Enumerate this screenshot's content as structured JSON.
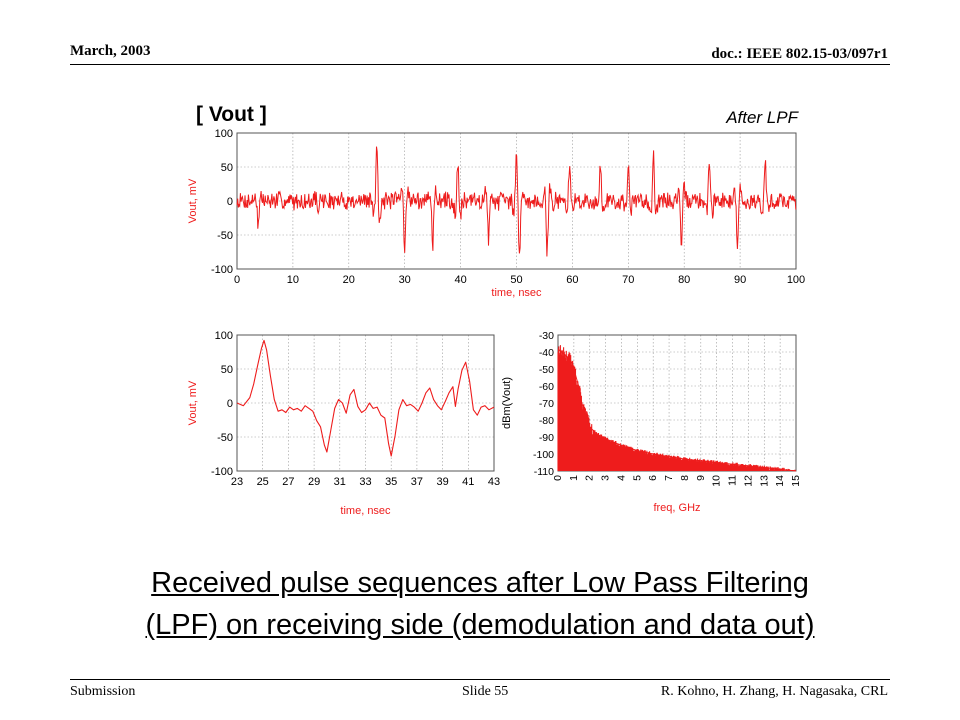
{
  "header": {
    "date": "March, 2003",
    "doc_id": "doc.: IEEE 802.15-03/097r1"
  },
  "footer": {
    "left": "Submission",
    "center": "Slide 55",
    "right": "R. Kohno, H. Zhang, H. Nagasaka, CRL"
  },
  "figure": {
    "label": "[ Vout ]",
    "note": "After LPF"
  },
  "caption": {
    "line1": "Received pulse sequences after Low Pass Filtering",
    "line2": "(LPF) on receiving side (demodulation and data out)"
  },
  "colors": {
    "trace": "#ee1c1c",
    "axis_label": "#ee1c1c",
    "frame": "#555555",
    "grid": "#999999"
  },
  "chart_data": [
    {
      "type": "line",
      "title": "",
      "xlabel": "time, nsec",
      "ylabel": "Vout, mV",
      "xlim": [
        0,
        100
      ],
      "ylim": [
        -100,
        100
      ],
      "xticks": [
        0,
        10,
        20,
        30,
        40,
        50,
        60,
        70,
        80,
        90,
        100
      ],
      "yticks": [
        100,
        50,
        0,
        -50,
        -100
      ],
      "grid": true,
      "baseline_noise_mV": 12,
      "pulses": [
        {
          "t": 3.8,
          "amp": -38
        },
        {
          "t": 14.5,
          "amp": -28
        },
        {
          "t": 25,
          "amp": 90
        },
        {
          "t": 30,
          "amp": -72
        },
        {
          "t": 35,
          "amp": -76
        },
        {
          "t": 39.5,
          "amp": 60
        },
        {
          "t": 45,
          "amp": -62
        },
        {
          "t": 50,
          "amp": 57
        },
        {
          "t": 50.5,
          "amp": -75
        },
        {
          "t": 55.5,
          "amp": -74
        },
        {
          "t": 59.5,
          "amp": 54
        },
        {
          "t": 65,
          "amp": 55
        },
        {
          "t": 70,
          "amp": 55
        },
        {
          "t": 74.5,
          "amp": 72
        },
        {
          "t": 79.5,
          "amp": -84
        },
        {
          "t": 84.5,
          "amp": 57
        },
        {
          "t": 89.5,
          "amp": -62
        },
        {
          "t": 94.5,
          "amp": 58
        }
      ]
    },
    {
      "type": "line",
      "title": "",
      "xlabel": "time, nsec",
      "ylabel": "Vout, mV",
      "xlim": [
        23,
        43
      ],
      "ylim": [
        -100,
        100
      ],
      "xticks": [
        23,
        25,
        27,
        29,
        31,
        33,
        35,
        37,
        39,
        41,
        43
      ],
      "yticks": [
        100,
        50,
        0,
        -50,
        -100
      ],
      "grid": true,
      "x": [
        23,
        23.5,
        24,
        24.3,
        24.6,
        24.9,
        25.1,
        25.3,
        25.6,
        25.9,
        26.2,
        26.5,
        26.8,
        27.1,
        27.4,
        27.7,
        28.0,
        28.3,
        28.6,
        28.9,
        29.2,
        29.5,
        29.8,
        30.0,
        30.3,
        30.6,
        30.9,
        31.2,
        31.5,
        31.8,
        32.1,
        32.4,
        32.7,
        33.0,
        33.3,
        33.6,
        33.9,
        34.2,
        34.5,
        34.8,
        35.0,
        35.3,
        35.6,
        35.9,
        36.2,
        36.5,
        36.8,
        37.1,
        37.4,
        37.7,
        38.0,
        38.3,
        38.6,
        38.9,
        39.2,
        39.5,
        39.8,
        40.0,
        40.2,
        40.5,
        40.8,
        41.1,
        41.4,
        41.7,
        42.0,
        42.3,
        42.6,
        43.0
      ],
      "y": [
        0,
        -4,
        8,
        28,
        55,
        80,
        92,
        78,
        40,
        5,
        -12,
        -10,
        -14,
        -6,
        -10,
        -8,
        -12,
        -4,
        -8,
        -12,
        -26,
        -35,
        -62,
        -72,
        -40,
        -8,
        5,
        0,
        -15,
        12,
        20,
        -5,
        -14,
        -10,
        0,
        -8,
        -6,
        -18,
        -22,
        -60,
        -78,
        -48,
        -10,
        5,
        -4,
        -2,
        -6,
        -12,
        0,
        15,
        22,
        5,
        -4,
        -10,
        2,
        15,
        24,
        -5,
        20,
        48,
        60,
        32,
        -10,
        -18,
        -6,
        -4,
        -10,
        -6
      ]
    },
    {
      "type": "area",
      "title": "",
      "xlabel": "freq, GHz",
      "ylabel": "dBm(Vout)",
      "xlim": [
        0,
        15
      ],
      "ylim": [
        -110,
        -30
      ],
      "xticks": [
        0,
        1,
        2,
        3,
        4,
        5,
        6,
        7,
        8,
        9,
        10,
        11,
        12,
        13,
        14,
        15
      ],
      "yticks": [
        -30,
        -40,
        -50,
        -60,
        -70,
        -80,
        -90,
        -100,
        -110
      ],
      "grid": true,
      "x": [
        0,
        0.2,
        0.5,
        0.8,
        1.0,
        1.3,
        1.5,
        1.8,
        2.0,
        2.3,
        2.6,
        3.0,
        3.5,
        4.0,
        5.0,
        6.0,
        7.0,
        8.0,
        9.0,
        10.0,
        11.0,
        12.0,
        13.0,
        14.0,
        15.0
      ],
      "y": [
        -38,
        -40,
        -42,
        -45,
        -50,
        -60,
        -70,
        -78,
        -84,
        -87,
        -89,
        -91,
        -93,
        -95,
        -98,
        -100,
        -101.5,
        -103,
        -104,
        -105,
        -106,
        -107,
        -108,
        -109,
        -110
      ]
    }
  ]
}
